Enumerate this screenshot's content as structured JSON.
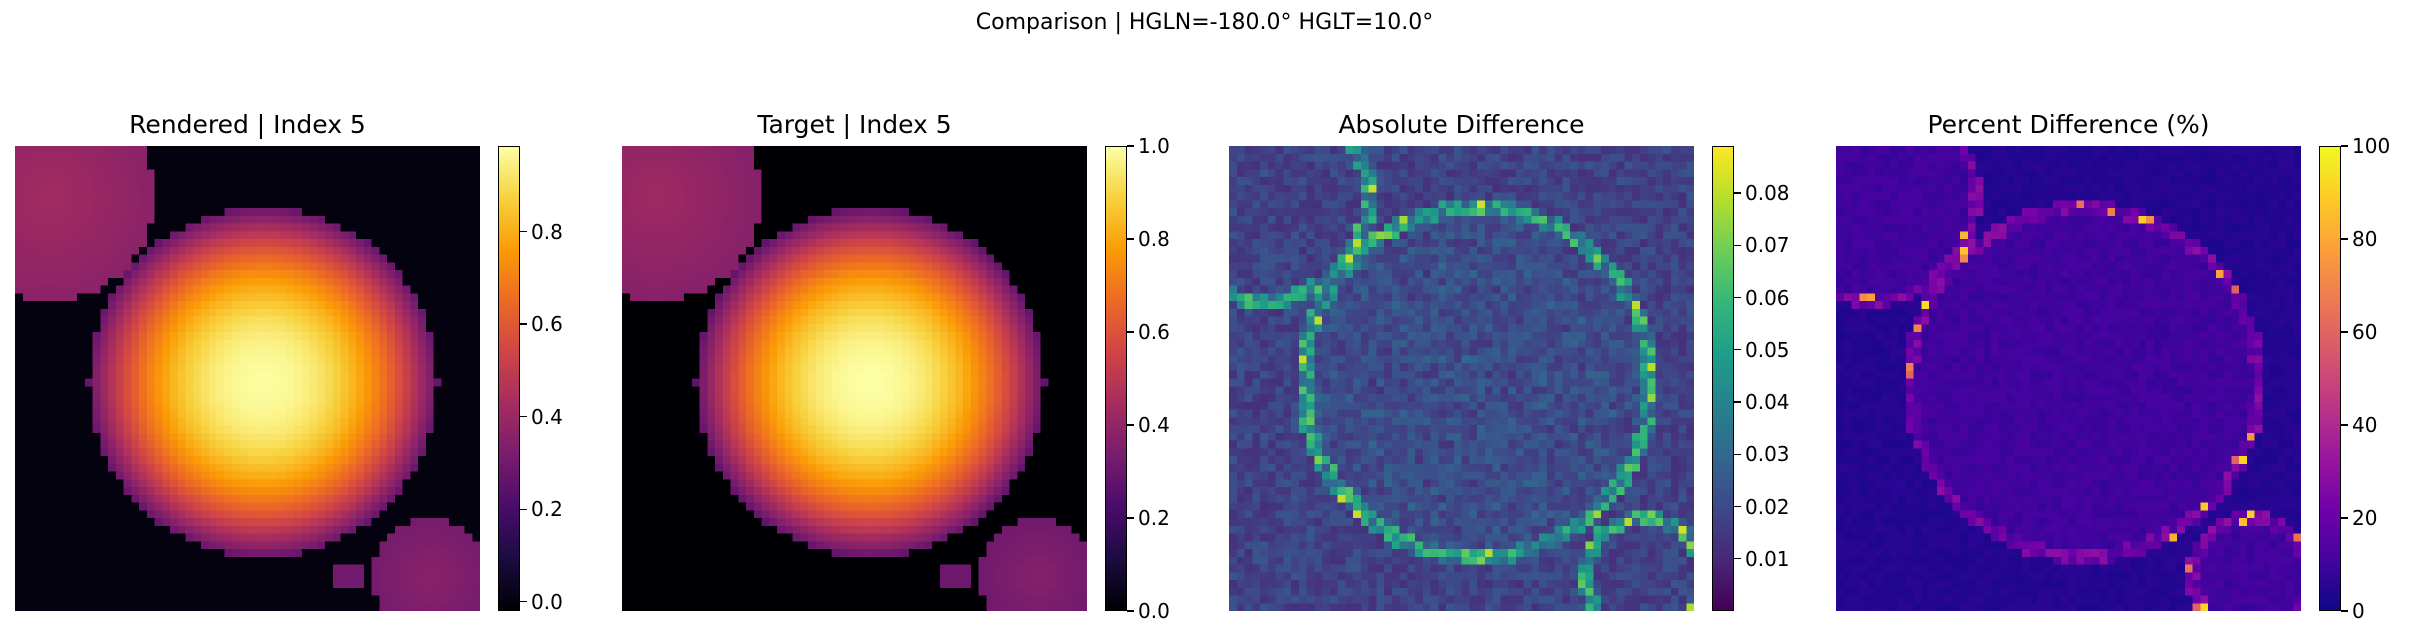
{
  "figure": {
    "suptitle": "Comparison | HGLN=-180.0° HGLT=10.0°"
  },
  "chart_data": [
    {
      "type": "heatmap",
      "title": "Rendered | Index 5",
      "colormap": "inferno",
      "vmin": -0.02,
      "vmax": 0.985,
      "colorbar_ticks": [
        "0.0",
        "0.2",
        "0.4",
        "0.6",
        "0.8"
      ],
      "colorbar_tick_values": [
        0.0,
        0.2,
        0.4,
        0.6,
        0.8
      ],
      "content": "Large bright disc centered left-of-middle (peak ≈0.98), smaller dim disc at top-left (≈0.4), partial disc at bottom-right (≈0.35), black background (≈0)"
    },
    {
      "type": "heatmap",
      "title": "Target | Index 5",
      "colormap": "inferno",
      "vmin": 0.0,
      "vmax": 1.0,
      "colorbar_ticks": [
        "0.0",
        "0.2",
        "0.4",
        "0.6",
        "0.8",
        "1.0"
      ],
      "colorbar_tick_values": [
        0.0,
        0.2,
        0.4,
        0.6,
        0.8,
        1.0
      ],
      "content": "Same scene as Rendered: large bright disc (peak ≈1.0), dim disc top-left, partial disc bottom-right"
    },
    {
      "type": "heatmap",
      "title": "Absolute Difference",
      "colormap": "viridis",
      "vmin": 0.0,
      "vmax": 0.089,
      "colorbar_ticks": [
        "0.01",
        "0.02",
        "0.03",
        "0.04",
        "0.05",
        "0.06",
        "0.07",
        "0.08"
      ],
      "colorbar_tick_values": [
        0.01,
        0.02,
        0.03,
        0.04,
        0.05,
        0.06,
        0.07,
        0.08
      ],
      "content": "Mostly low differences (≈0.01-0.02) with higher values (up to ≈0.08) along disc edges"
    },
    {
      "type": "heatmap",
      "title": "Percent Difference (%)",
      "colormap": "plasma",
      "vmin": 0,
      "vmax": 100,
      "colorbar_ticks": [
        "0",
        "20",
        "40",
        "60",
        "80",
        "100"
      ],
      "colorbar_tick_values": [
        0,
        20,
        40,
        60,
        80,
        100
      ],
      "content": "Near-zero everywhere, with spikes (up to ≈100%) along disc edges, especially left edge and bottom-right disc rim"
    }
  ]
}
